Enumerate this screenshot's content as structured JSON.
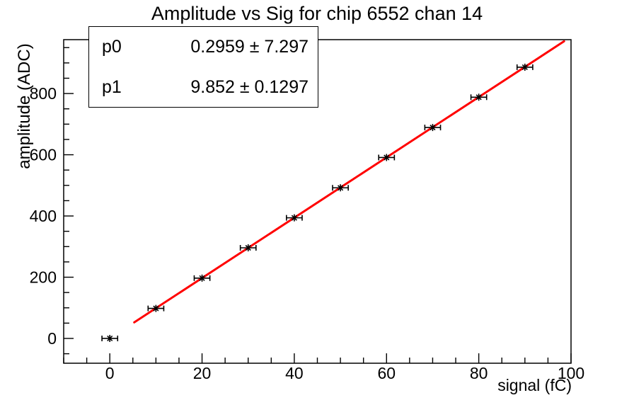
{
  "title": "Amplitude vs Sig for chip 6552 chan 14",
  "stats_box": {
    "rows": [
      {
        "name": "p0",
        "value": "0.2959 ± 7.297"
      },
      {
        "name": "p1",
        "value": "9.852 ± 0.1297"
      }
    ]
  },
  "chart_data": {
    "type": "scatter",
    "title": "Amplitude vs Sig for chip 6552 chan 14",
    "xlabel": "signal (fC)",
    "ylabel": "amplitude (ADC)",
    "xlim": [
      -10,
      100
    ],
    "ylim": [
      -81,
      976
    ],
    "x_major_ticks": [
      0,
      20,
      40,
      60,
      80,
      100
    ],
    "x_minor_step": 5,
    "y_major_ticks": [
      0,
      200,
      400,
      600,
      800
    ],
    "y_minor_step": 50,
    "grid": false,
    "legend": "none",
    "points": {
      "x": [
        0,
        10,
        20,
        30,
        40,
        50,
        60,
        70,
        80,
        90
      ],
      "y": [
        0,
        98,
        197,
        296,
        394,
        492,
        591,
        689,
        788,
        886
      ],
      "x_error": 1.7,
      "marker": "star",
      "color": "#000000"
    },
    "fit_line": {
      "equation": "y = p0 + p1*x",
      "p0": 0.2959,
      "p0_error": 7.297,
      "p1": 9.852,
      "p1_error": 0.1297,
      "x_range": [
        5.3,
        98.5
      ],
      "color": "#ff0000"
    }
  },
  "colors": {
    "background": "#ffffff",
    "axis": "#000000",
    "fit_line": "#ff0000",
    "marker": "#000000"
  }
}
